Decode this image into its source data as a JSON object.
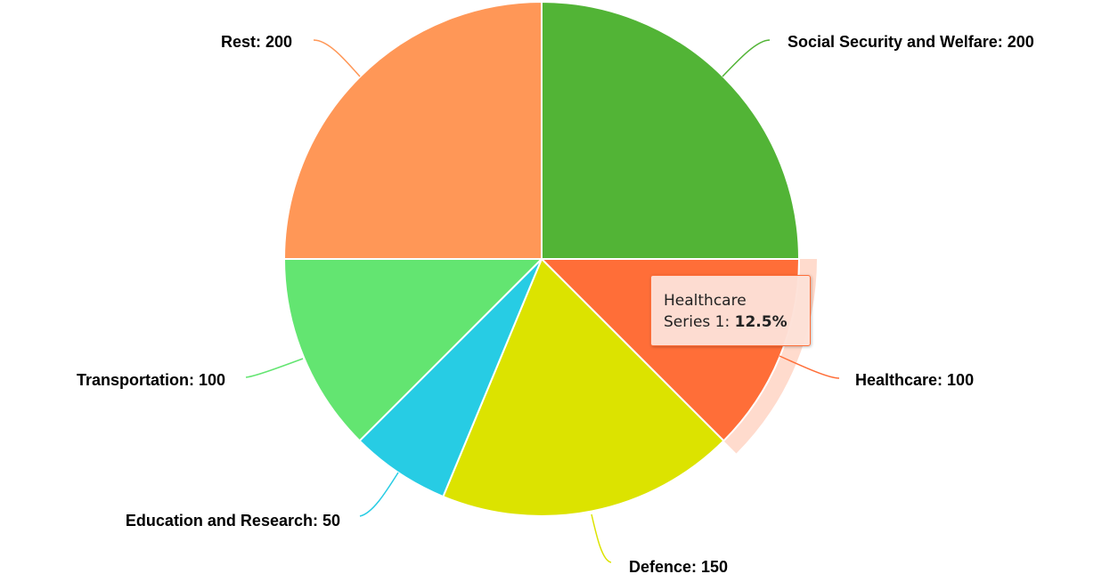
{
  "chart_data": {
    "type": "pie",
    "series_name": "Series 1",
    "slices": [
      {
        "label": "Social Security and Welfare",
        "value": 200,
        "color": "#52b436",
        "display": "Social Security and Welfare: 200"
      },
      {
        "label": "Healthcare",
        "value": 100,
        "color": "#ff6e38",
        "display": "Healthcare: 100"
      },
      {
        "label": "Defence",
        "value": 150,
        "color": "#dce300",
        "display": "Defence: 150"
      },
      {
        "label": "Education and Research",
        "value": 50,
        "color": "#27cce4",
        "display": "Education and Research: 50"
      },
      {
        "label": "Transportation",
        "value": 100,
        "color": "#63e571",
        "display": "Transportation: 100"
      },
      {
        "label": "Rest",
        "value": 200,
        "color": "#ff9757",
        "display": "Rest: 200"
      }
    ],
    "hovered_index": 1,
    "tooltip": {
      "title": "Healthcare",
      "series_label": "Series 1:",
      "value": "12.5%"
    }
  }
}
